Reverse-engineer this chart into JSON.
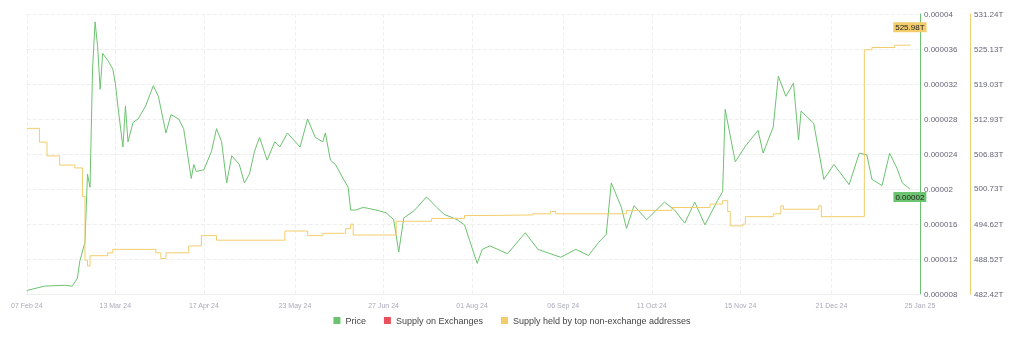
{
  "chart_data": {
    "type": "line",
    "xlim": [
      "2024-02-07",
      "2025-01-25"
    ],
    "xticks": [
      {
        "value": "2024-02-07",
        "label": "07 Feb 24"
      },
      {
        "value": "2024-03-13",
        "label": "13 Mar 24"
      },
      {
        "value": "2024-04-17",
        "label": "17 Apr 24"
      },
      {
        "value": "2024-05-23",
        "label": "23 May 24"
      },
      {
        "value": "2024-06-27",
        "label": "27 Jun 24"
      },
      {
        "value": "2024-08-01",
        "label": "01 Aug 24"
      },
      {
        "value": "2024-09-06",
        "label": "06 Sep 24"
      },
      {
        "value": "2024-10-11",
        "label": "11 Oct 24"
      },
      {
        "value": "2024-11-15",
        "label": "15 Nov 24"
      },
      {
        "value": "2024-12-21",
        "label": "21 Dec 24"
      },
      {
        "value": "2025-01-25",
        "label": "25 Jan 25"
      }
    ],
    "ylim": [
      8e-06,
      4e-05
    ],
    "yticks": [
      {
        "value": 8e-06,
        "label": "0.000008"
      },
      {
        "value": 1.2e-05,
        "label": "0.000012"
      },
      {
        "value": 1.6e-05,
        "label": "0.000016"
      },
      {
        "value": 2e-05,
        "label": "0.00002"
      },
      {
        "value": 2.4e-05,
        "label": "0.000024"
      },
      {
        "value": 2.8e-05,
        "label": "0.000028"
      },
      {
        "value": 3.2e-05,
        "label": "0.000032"
      },
      {
        "value": 3.6e-05,
        "label": "0.000036"
      },
      {
        "value": 4e-05,
        "label": "0.00004"
      }
    ],
    "y2lim": [
      482.42,
      531.24
    ],
    "y2ticks": [
      {
        "value": 482.42,
        "label": "482.42T"
      },
      {
        "value": 488.52,
        "label": "488.52T"
      },
      {
        "value": 494.62,
        "label": "494.62T"
      },
      {
        "value": 500.73,
        "label": "500.73T"
      },
      {
        "value": 506.83,
        "label": "506.83T"
      },
      {
        "value": 512.93,
        "label": "512.93T"
      },
      {
        "value": 519.03,
        "label": "519.03T"
      },
      {
        "value": 525.13,
        "label": "525.13T"
      },
      {
        "value": 531.24,
        "label": "531.24T"
      }
    ],
    "grid": true,
    "legend": "bottom",
    "marker": "none",
    "line_style": "solid",
    "series": [
      {
        "name": "Price",
        "color": "#6cc36f",
        "x": [
          "2024-02-07",
          "2024-02-14",
          "2024-02-22",
          "2024-02-25",
          "2024-02-27",
          "2024-02-28",
          "2024-03-01",
          "2024-03-02",
          "2024-03-03",
          "2024-03-04",
          "2024-03-05",
          "2024-03-06",
          "2024-03-07",
          "2024-03-08",
          "2024-03-10",
          "2024-03-12",
          "2024-03-13",
          "2024-03-14",
          "2024-03-16",
          "2024-03-17",
          "2024-03-18",
          "2024-03-20",
          "2024-03-22",
          "2024-03-25",
          "2024-03-28",
          "2024-03-30",
          "2024-04-02",
          "2024-04-04",
          "2024-04-07",
          "2024-04-09",
          "2024-04-12",
          "2024-04-13",
          "2024-04-14",
          "2024-04-17",
          "2024-04-20",
          "2024-04-22",
          "2024-04-24",
          "2024-04-26",
          "2024-04-28",
          "2024-05-01",
          "2024-05-03",
          "2024-05-05",
          "2024-05-07",
          "2024-05-09",
          "2024-05-12",
          "2024-05-15",
          "2024-05-17",
          "2024-05-20",
          "2024-05-25",
          "2024-05-28",
          "2024-05-31",
          "2024-06-03",
          "2024-06-04",
          "2024-06-06",
          "2024-06-08",
          "2024-06-11",
          "2024-06-13",
          "2024-06-14",
          "2024-06-16",
          "2024-06-19",
          "2024-06-24",
          "2024-06-28",
          "2024-07-01",
          "2024-07-03",
          "2024-07-05",
          "2024-07-09",
          "2024-07-14",
          "2024-07-18",
          "2024-07-21",
          "2024-07-26",
          "2024-07-29",
          "2024-08-03",
          "2024-08-05",
          "2024-08-08",
          "2024-08-15",
          "2024-08-22",
          "2024-08-27",
          "2024-09-05",
          "2024-09-11",
          "2024-09-16",
          "2024-09-20",
          "2024-09-23",
          "2024-09-25",
          "2024-09-29",
          "2024-10-01",
          "2024-10-04",
          "2024-10-09",
          "2024-10-16",
          "2024-10-20",
          "2024-10-24",
          "2024-10-28",
          "2024-11-01",
          "2024-11-06",
          "2024-11-08",
          "2024-11-09",
          "2024-11-13",
          "2024-11-17",
          "2024-11-22",
          "2024-11-24",
          "2024-11-28",
          "2024-11-30",
          "2024-12-03",
          "2024-12-06",
          "2024-12-08",
          "2024-12-09",
          "2024-12-14",
          "2024-12-18",
          "2024-12-22",
          "2024-12-28",
          "2025-01-01",
          "2025-01-04",
          "2025-01-06",
          "2025-01-10",
          "2025-01-13",
          "2025-01-16",
          "2025-01-18",
          "2025-01-21"
        ],
        "values": [
          8.4e-06,
          8.9e-06,
          9e-06,
          8.9e-06,
          9.8e-06,
          1.18e-05,
          1.39e-05,
          2.17e-05,
          2.02e-05,
          3.37e-05,
          3.91e-05,
          3.63e-05,
          3.14e-05,
          3.55e-05,
          3.47e-05,
          3.37e-05,
          3.21e-05,
          2.95e-05,
          2.48e-05,
          2.95e-05,
          2.54e-05,
          2.76e-05,
          2.8e-05,
          2.95e-05,
          3.18e-05,
          3.06e-05,
          2.64e-05,
          2.85e-05,
          2.8e-05,
          2.69e-05,
          2.12e-05,
          2.28e-05,
          2.2e-05,
          2.22e-05,
          2.43e-05,
          2.69e-05,
          2.54e-05,
          2.07e-05,
          2.38e-05,
          2.28e-05,
          2.07e-05,
          2.17e-05,
          2.43e-05,
          2.59e-05,
          2.33e-05,
          2.54e-05,
          2.48e-05,
          2.64e-05,
          2.48e-05,
          2.8e-05,
          2.59e-05,
          2.54e-05,
          2.64e-05,
          2.33e-05,
          2.28e-05,
          2.12e-05,
          2.02e-05,
          1.76e-05,
          1.76e-05,
          1.79e-05,
          1.76e-05,
          1.73e-05,
          1.65e-05,
          1.28e-05,
          1.67e-05,
          1.75e-05,
          1.91e-05,
          1.79e-05,
          1.71e-05,
          1.65e-05,
          1.59e-05,
          1.15e-05,
          1.31e-05,
          1.35e-05,
          1.26e-05,
          1.5e-05,
          1.31e-05,
          1.22e-05,
          1.31e-05,
          1.24e-05,
          1.39e-05,
          1.48e-05,
          2.07e-05,
          1.79e-05,
          1.55e-05,
          1.81e-05,
          1.65e-05,
          1.85e-05,
          1.76e-05,
          1.61e-05,
          1.85e-05,
          1.59e-05,
          1.87e-05,
          1.97e-05,
          2.91e-05,
          2.31e-05,
          2.49e-05,
          2.67e-05,
          2.41e-05,
          2.71e-05,
          3.29e-05,
          3.06e-05,
          3.21e-05,
          2.56e-05,
          2.89e-05,
          2.75e-05,
          2.11e-05,
          2.28e-05,
          2.05e-05,
          2.41e-05,
          2.39e-05,
          2.11e-05,
          2.04e-05,
          2.41e-05,
          2.23e-05,
          2.07e-05,
          2e-05
        ],
        "value_labels": [
          null,
          null,
          null,
          null,
          null,
          null,
          null,
          null,
          null,
          null,
          null,
          null,
          null,
          null,
          null,
          null,
          null,
          null,
          null,
          null,
          null,
          null,
          null,
          null,
          null,
          null,
          null,
          null,
          null,
          null,
          null,
          null,
          null,
          null,
          null,
          null,
          null,
          null,
          null,
          null,
          null,
          null,
          null,
          null,
          null,
          null,
          null,
          null,
          null,
          null,
          null,
          null,
          null,
          null,
          null,
          null,
          null,
          null,
          null,
          null,
          null,
          null,
          null,
          null,
          null,
          null,
          null,
          null,
          null,
          null,
          null,
          null,
          null,
          null,
          null,
          null,
          null,
          null,
          null,
          null,
          null,
          null,
          null,
          null,
          null,
          null,
          null,
          null,
          null,
          null,
          null,
          null,
          null,
          null,
          null,
          null,
          null,
          null,
          null,
          null,
          null,
          null,
          null,
          null,
          null,
          null,
          null,
          null,
          null,
          null,
          null,
          null,
          null,
          null,
          null,
          null,
          "0.00002"
        ]
      },
      {
        "name": "Supply on Exchanges",
        "color": "#e8515c",
        "axis": "y2"
      },
      {
        "name": "Supply held by top non-exchange addresses",
        "color": "#f3cd6b",
        "type": "step",
        "axis": "y2",
        "x": [
          "2024-02-07",
          "2024-02-12",
          "2024-02-15",
          "2024-02-20",
          "2024-02-26",
          "2024-02-29",
          "2024-03-01",
          "2024-03-02",
          "2024-03-03",
          "2024-03-10",
          "2024-03-12",
          "2024-03-29",
          "2024-03-31",
          "2024-04-02",
          "2024-04-11",
          "2024-04-16",
          "2024-04-22",
          "2024-05-19",
          "2024-05-28",
          "2024-06-03",
          "2024-06-12",
          "2024-06-14",
          "2024-06-15",
          "2024-07-02",
          "2024-07-16",
          "2024-07-29",
          "2024-08-05",
          "2024-08-25",
          "2024-09-01",
          "2024-09-03",
          "2024-10-01",
          "2024-10-19",
          "2024-11-03",
          "2024-11-08",
          "2024-11-10",
          "2024-11-11",
          "2024-11-16",
          "2024-11-17",
          "2024-11-28",
          "2024-12-01",
          "2024-12-02",
          "2024-12-16",
          "2024-12-17",
          "2025-01-03",
          "2025-01-06",
          "2025-01-15",
          "2025-01-21"
        ],
        "values": [
          511.3,
          508.9,
          506.5,
          504.9,
          504.4,
          499.4,
          488.3,
          487.3,
          489.1,
          489.6,
          490.2,
          489.6,
          488.6,
          489.6,
          490.8,
          492.6,
          491.8,
          493.4,
          492.6,
          493.0,
          493.8,
          494.6,
          492.7,
          495.1,
          495.6,
          496.1,
          496.2,
          496.4,
          496.8,
          496.4,
          497.0,
          497.5,
          498.1,
          498.7,
          496.8,
          494.3,
          494.6,
          495.9,
          496.4,
          497.8,
          497.2,
          497.8,
          495.9,
          525.0,
          525.4,
          525.8,
          525.98
        ],
        "value_labels": [
          null,
          null,
          null,
          null,
          null,
          null,
          null,
          null,
          null,
          null,
          null,
          null,
          null,
          null,
          null,
          null,
          null,
          null,
          null,
          null,
          null,
          null,
          null,
          null,
          null,
          null,
          null,
          null,
          null,
          null,
          null,
          null,
          null,
          null,
          null,
          null,
          null,
          null,
          null,
          null,
          null,
          null,
          null,
          null,
          null,
          null,
          "525.98T"
        ]
      }
    ]
  }
}
